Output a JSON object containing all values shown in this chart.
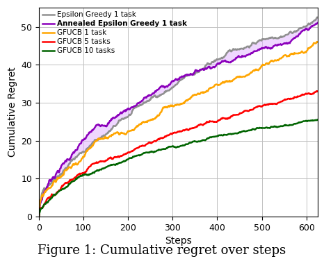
{
  "xlabel": "Steps",
  "ylabel": "Cumulative Regret",
  "xlim": [
    0,
    625
  ],
  "ylim": [
    0,
    55
  ],
  "xticks": [
    0,
    100,
    200,
    300,
    400,
    500,
    600
  ],
  "yticks": [
    0,
    10,
    20,
    30,
    40,
    50
  ],
  "caption": "Figure 1: Cumulative regret over steps",
  "lines": [
    {
      "label": "Epsilon Greedy 1 task",
      "color": "#909090",
      "linewidth": 1.8,
      "seed": 42,
      "end_x": 625,
      "end_y": 52.5,
      "noise_scale": 0.5,
      "sqrt_weight": 0.85,
      "linear_weight": 0.15
    },
    {
      "label": "Annealed Epsilon Greedy 1 task",
      "color": "#8B00BB",
      "linewidth": 1.8,
      "seed": 7,
      "end_x": 625,
      "end_y": 51.0,
      "noise_scale": 0.5,
      "sqrt_weight": 0.9,
      "linear_weight": 0.1
    },
    {
      "label": "GFUCB 1 task",
      "color": "#FFA500",
      "linewidth": 1.8,
      "seed": 99,
      "end_x": 625,
      "end_y": 46.0,
      "noise_scale": 0.6,
      "sqrt_weight": 0.75,
      "linear_weight": 0.25
    },
    {
      "label": "GFUCB 5 tasks",
      "color": "#FF0000",
      "linewidth": 1.8,
      "seed": 15,
      "end_x": 625,
      "end_y": 33.0,
      "noise_scale": 0.4,
      "sqrt_weight": 0.8,
      "linear_weight": 0.2
    },
    {
      "label": "GFUCB 10 tasks",
      "color": "#006400",
      "linewidth": 1.8,
      "seed": 23,
      "end_x": 625,
      "end_y": 25.5,
      "noise_scale": 0.35,
      "sqrt_weight": 0.8,
      "linear_weight": 0.2
    }
  ],
  "fill_between_idx": [
    0,
    1
  ],
  "fill_color": "#E0B0FF",
  "fill_alpha": 0.5,
  "background_color": "#ffffff",
  "grid_color": "#c0c0c0",
  "figsize": [
    4.66,
    3.76
  ],
  "dpi": 100
}
